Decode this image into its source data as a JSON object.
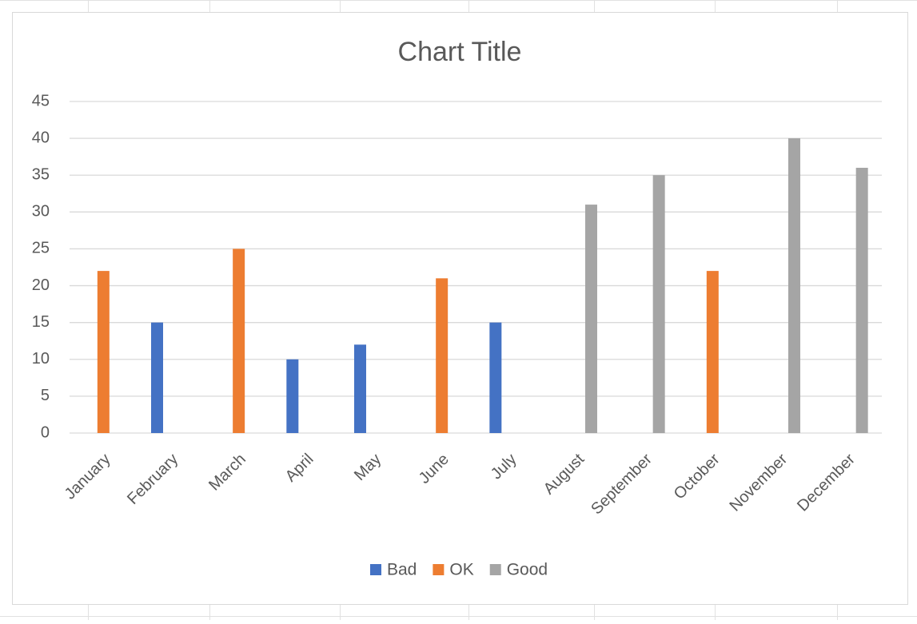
{
  "chart_data": {
    "type": "bar",
    "title": "Chart Title",
    "categories": [
      "January",
      "February",
      "March",
      "April",
      "May",
      "June",
      "July",
      "August",
      "September",
      "October",
      "November",
      "December"
    ],
    "series": [
      {
        "name": "Bad",
        "color": "#4472c4",
        "values": [
          null,
          15,
          null,
          10,
          12,
          null,
          15,
          null,
          null,
          null,
          null,
          null
        ]
      },
      {
        "name": "OK",
        "color": "#ed7d31",
        "values": [
          22,
          null,
          25,
          null,
          null,
          21,
          null,
          null,
          null,
          22,
          null,
          null
        ]
      },
      {
        "name": "Good",
        "color": "#a5a5a5",
        "values": [
          null,
          null,
          null,
          null,
          null,
          null,
          null,
          31,
          35,
          null,
          40,
          36
        ]
      }
    ],
    "ylim": [
      0,
      45
    ],
    "yticks": [
      0,
      5,
      10,
      15,
      20,
      25,
      30,
      35,
      40,
      45
    ],
    "grid": true,
    "legend": "bottom"
  }
}
